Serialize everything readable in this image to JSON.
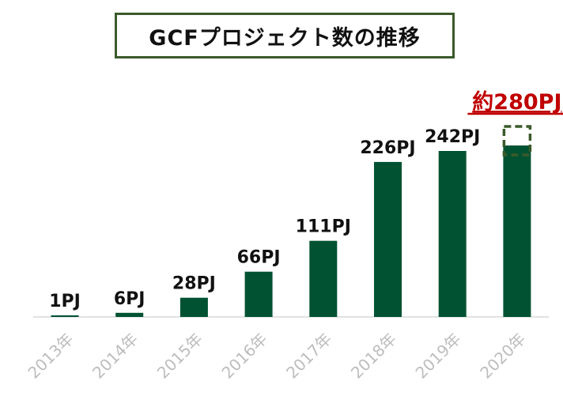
{
  "chart_data": {
    "type": "bar",
    "title": "GCFプロジェクト数の推移",
    "categories": [
      "2013年",
      "2014年",
      "2015年",
      "2016年",
      "2017年",
      "2018年",
      "2019年",
      "2020年"
    ],
    "values": [
      1,
      6,
      28,
      66,
      111,
      226,
      242,
      280
    ],
    "labels": [
      "1PJ",
      "6PJ",
      "28PJ",
      "66PJ",
      "111PJ",
      "226PJ",
      "242PJ",
      ""
    ],
    "projected": {
      "category": "2020年",
      "value": 280,
      "label": "約280PJ"
    },
    "ylim": [
      0,
      310
    ],
    "grid": false,
    "xlabel": "",
    "ylabel": ""
  },
  "colors": {
    "bar": "#005232",
    "projected_outline": "#3a5a2a",
    "title_border": "#3a5a2a",
    "projected_label": "#c00000",
    "tick_label": "#bdbdbd",
    "axis": "#d9d9d9"
  }
}
